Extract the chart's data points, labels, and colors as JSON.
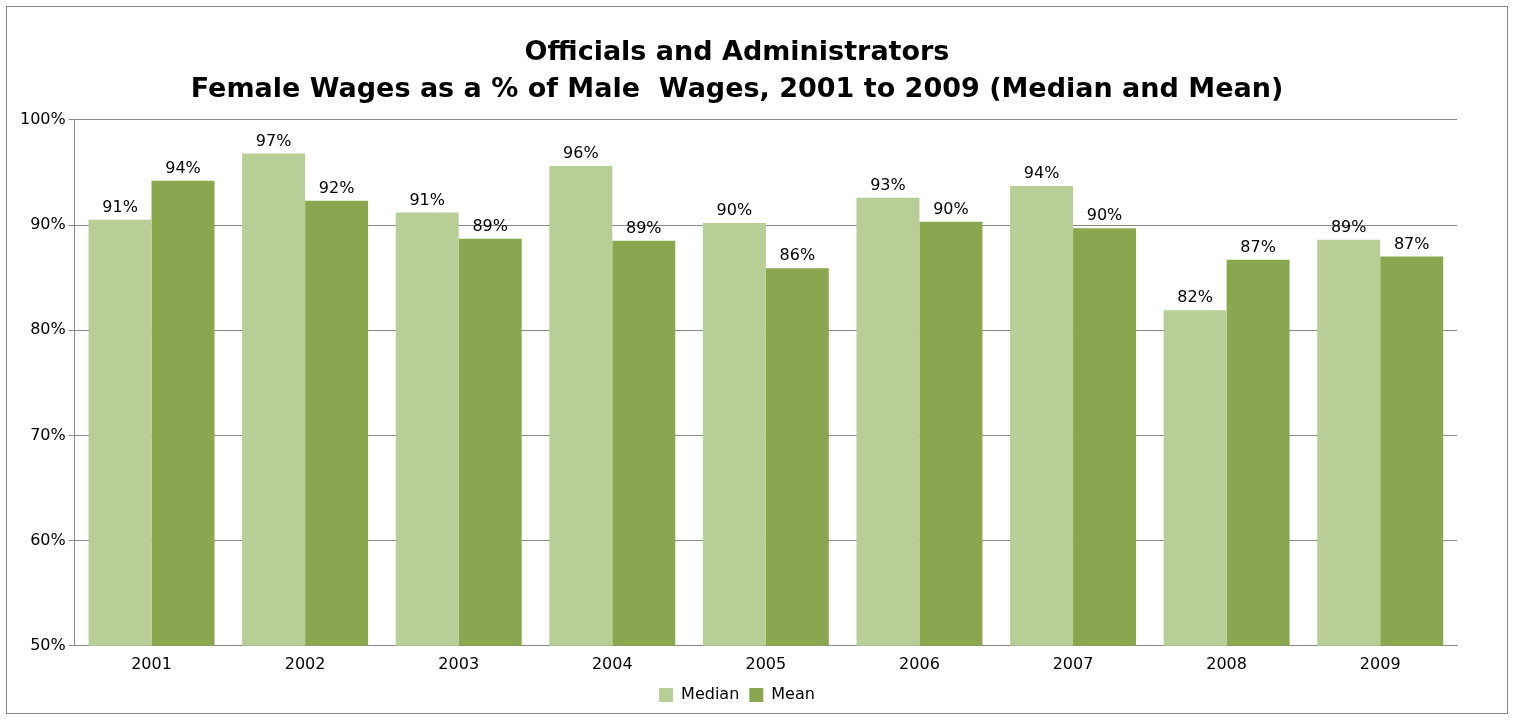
{
  "chart_data": {
    "type": "bar",
    "title": "Officials and Administrators",
    "subtitle": "Female Wages as a % of Male  Wages, 2001 to 2009 (Median and Mean)",
    "categories": [
      "2001",
      "2002",
      "2003",
      "2004",
      "2005",
      "2006",
      "2007",
      "2008",
      "2009"
    ],
    "series": [
      {
        "name": "Median",
        "color": "#b9cd96",
        "values": [
          90.5,
          96.8,
          91.2,
          95.6,
          90.2,
          92.6,
          93.7,
          81.9,
          88.6
        ],
        "value_labels": [
          "91%",
          "97%",
          "91%",
          "96%",
          "90%",
          "93%",
          "94%",
          "82%",
          "89%"
        ]
      },
      {
        "name": "Mean",
        "color": "#8aa64f",
        "values": [
          94.2,
          92.3,
          88.7,
          88.5,
          85.9,
          90.3,
          89.7,
          86.7,
          87.0
        ],
        "value_labels": [
          "94%",
          "92%",
          "89%",
          "89%",
          "86%",
          "90%",
          "90%",
          "87%",
          "87%"
        ]
      }
    ],
    "ylim": [
      50,
      100
    ],
    "yticks": [
      {
        "value": 50,
        "label": "50%"
      },
      {
        "value": 60,
        "label": "60%"
      },
      {
        "value": 70,
        "label": "70%"
      },
      {
        "value": 80,
        "label": "80%"
      },
      {
        "value": 90,
        "label": "90%"
      },
      {
        "value": 100,
        "label": "100%"
      }
    ],
    "grid": "y",
    "legend": "bottom"
  }
}
